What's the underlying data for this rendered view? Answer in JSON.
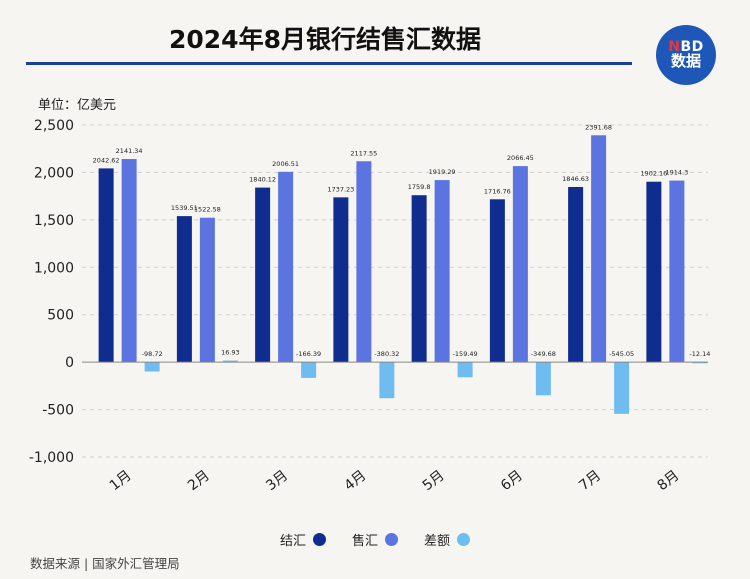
{
  "title": "2024年8月银行结售汇数据",
  "logo": {
    "top_n": "N",
    "top_rest": "BD",
    "bottom": "数据"
  },
  "unit_label": "单位：亿美元",
  "source": "数据来源 | 国家外汇管理局",
  "colors": {
    "结汇": "#0f2c8f",
    "售汇": "#5b74e0",
    "差额": "#6fbdf0",
    "title_rule": "#1c3f9a",
    "logo": "#1f57b8"
  },
  "chart_data": {
    "type": "bar",
    "categories": [
      "1月",
      "2月",
      "3月",
      "4月",
      "5月",
      "6月",
      "7月",
      "8月"
    ],
    "series": [
      {
        "name": "结汇",
        "values": [
          2042.62,
          1539.51,
          1840.12,
          1737.23,
          1759.8,
          1716.76,
          1846.63,
          1902.16
        ],
        "labels": [
          "2042.62",
          "1539.51",
          "1840.12",
          "1737.23",
          "1759.8",
          "1716.76",
          "1846.63",
          "1902.16"
        ]
      },
      {
        "name": "售汇",
        "values": [
          2141.34,
          1522.58,
          2006.51,
          2117.55,
          1919.29,
          2066.45,
          2391.68,
          1914.3
        ],
        "labels": [
          "2141.34",
          "1522.58",
          "2006.51",
          "2117.55",
          "1919.29",
          "2066.45",
          "2391.68",
          "1914.3"
        ]
      },
      {
        "name": "差额",
        "values": [
          -98.72,
          16.93,
          -166.39,
          -380.32,
          -159.49,
          -349.68,
          -545.05,
          -12.14
        ],
        "labels": [
          "-98.72",
          "16.93",
          "-166.39",
          "-380.32",
          "-159.49",
          "-349.68",
          "-545.05",
          "-12.14"
        ]
      }
    ],
    "ylim": [
      -1000,
      2500
    ],
    "yticks": [
      -1000,
      -500,
      0,
      500,
      1000,
      1500,
      2000,
      2500
    ],
    "ytick_labels": [
      "-1,000",
      "-500",
      "0",
      "500",
      "1,000",
      "1,500",
      "2,000",
      "2,500"
    ],
    "grid": true,
    "legend_position": "bottom"
  }
}
